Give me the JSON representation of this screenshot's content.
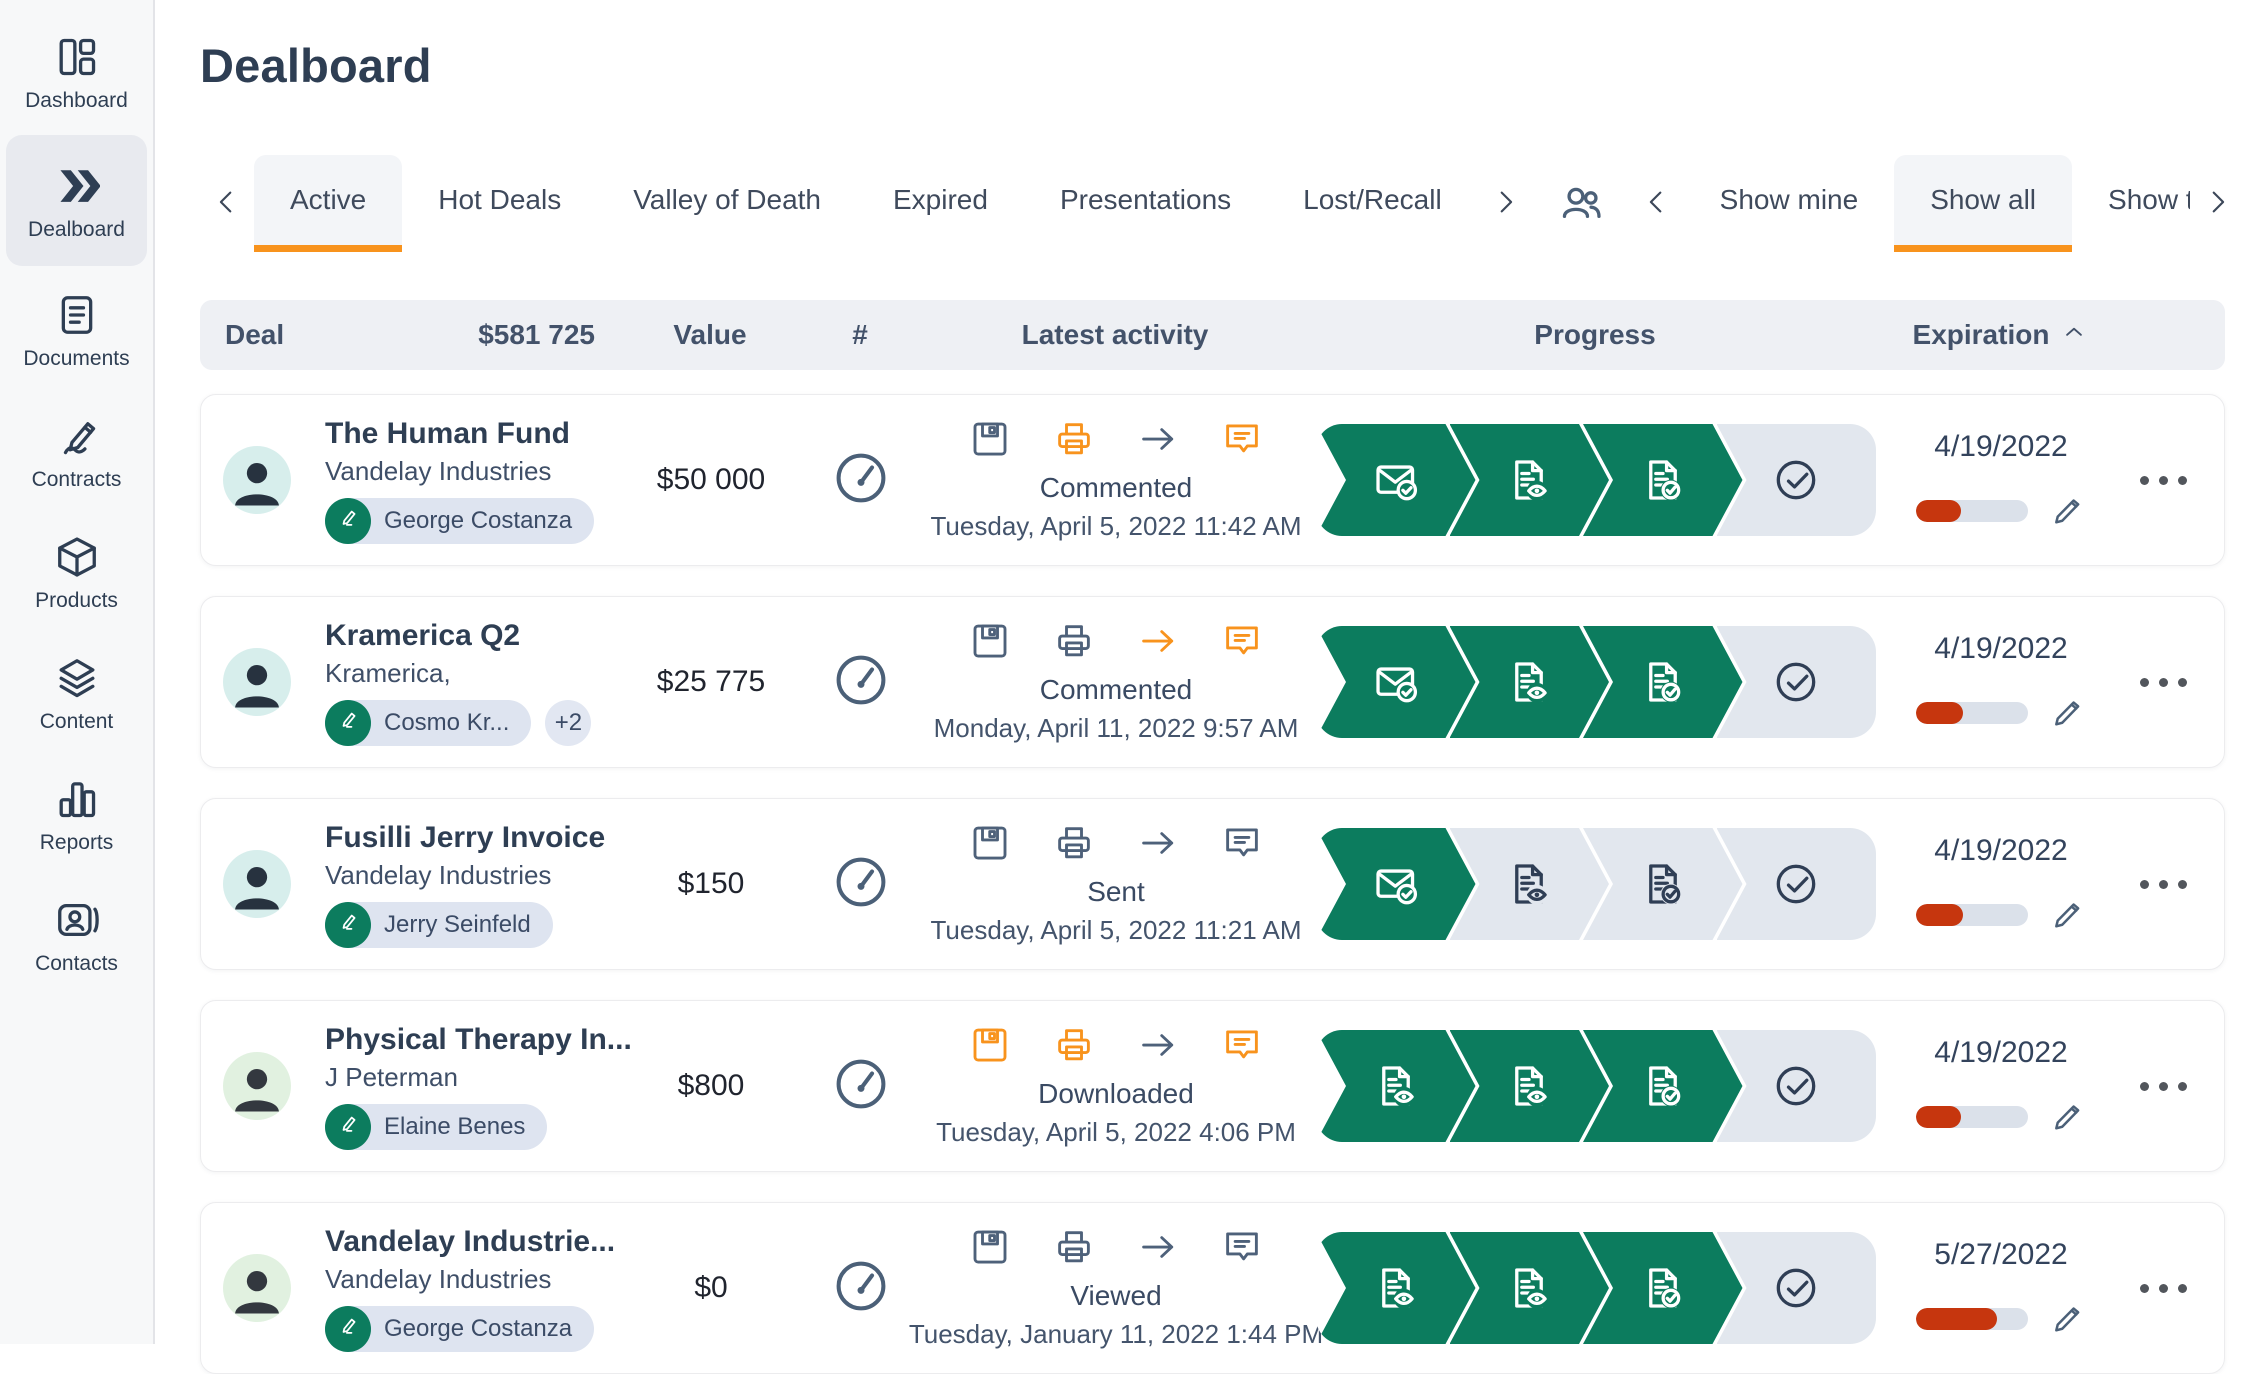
{
  "page": {
    "title": "Dealboard"
  },
  "colors": {
    "accent_orange": "#f8931d",
    "progress_green": "#0c7c5e",
    "health_red": "#c6360e",
    "navy_text": "#2e3e53"
  },
  "sidebar": {
    "items": [
      {
        "id": "sidebar-item-dashboard",
        "label": "Dashboard",
        "icon": "dashboard-icon",
        "state": ""
      },
      {
        "id": "sidebar-item-dealboard",
        "label": "Dealboard",
        "icon": "dealboard-icon",
        "state": "active"
      },
      {
        "id": "sidebar-item-documents",
        "label": "Documents",
        "icon": "documents-icon",
        "state": ""
      },
      {
        "id": "sidebar-item-contracts",
        "label": "Contracts",
        "icon": "contracts-icon",
        "state": ""
      },
      {
        "id": "sidebar-item-products",
        "label": "Products",
        "icon": "products-icon",
        "state": ""
      },
      {
        "id": "sidebar-item-content",
        "label": "Content",
        "icon": "content-icon",
        "state": ""
      },
      {
        "id": "sidebar-item-reports",
        "label": "Reports",
        "icon": "reports-icon",
        "state": ""
      },
      {
        "id": "sidebar-item-contacts",
        "label": "Contacts",
        "icon": "contacts-icon",
        "state": ""
      }
    ]
  },
  "deal_tabs": [
    {
      "id": "tab-active",
      "label": "Active",
      "state": "active"
    },
    {
      "id": "tab-hot-deals",
      "label": "Hot Deals",
      "state": ""
    },
    {
      "id": "tab-valley-of-death",
      "label": "Valley of Death",
      "state": ""
    },
    {
      "id": "tab-expired",
      "label": "Expired",
      "state": ""
    },
    {
      "id": "tab-presentations",
      "label": "Presentations",
      "state": ""
    },
    {
      "id": "tab-lost-recall",
      "label": "Lost/Recall",
      "state": ""
    }
  ],
  "filter_tabs": [
    {
      "id": "tab-show-mine",
      "label": "Show mine",
      "state": ""
    },
    {
      "id": "tab-show-all",
      "label": "Show all",
      "state": "active"
    },
    {
      "id": "tab-show-team",
      "label": "Show team",
      "state": ""
    }
  ],
  "table_header": {
    "deal": "Deal",
    "total": "$581 725",
    "value": "Value",
    "number": "#",
    "latest_activity": "Latest activity",
    "progress": "Progress",
    "expiration": "Expiration"
  },
  "rows": [
    {
      "name": "The Human Fund",
      "company": "Vandelay Industries",
      "avatar": "teal",
      "tag": "George Costanza",
      "extra": "",
      "value": "$50 000",
      "activity_icons": [
        {
          "icon": "save-icon",
          "tone": "slate"
        },
        {
          "icon": "printer-icon",
          "tone": "orange"
        },
        {
          "icon": "forward-icon",
          "tone": "slate"
        },
        {
          "icon": "comment-icon",
          "tone": "orange"
        }
      ],
      "status": "Commented",
      "activity_date": "Tuesday, April 5, 2022 11:42 AM",
      "stages": [
        {
          "icon": "envelope-check-icon",
          "state": "done"
        },
        {
          "icon": "doc-eye-icon",
          "state": "done"
        },
        {
          "icon": "doc-check-icon",
          "state": "done"
        },
        {
          "icon": "circle-check-icon",
          "state": "todo"
        }
      ],
      "expiration": "4/19/2022",
      "health_pct": 40
    },
    {
      "name": "Kramerica Q2",
      "company": "Kramerica,",
      "avatar": "teal",
      "tag": "Cosmo Kr...",
      "extra": "+2",
      "value": "$25 775",
      "activity_icons": [
        {
          "icon": "save-icon",
          "tone": "slate"
        },
        {
          "icon": "printer-icon",
          "tone": "slate"
        },
        {
          "icon": "forward-icon",
          "tone": "orange"
        },
        {
          "icon": "comment-icon",
          "tone": "orange"
        }
      ],
      "status": "Commented",
      "activity_date": "Monday, April 11, 2022 9:57 AM",
      "stages": [
        {
          "icon": "envelope-check-icon",
          "state": "done"
        },
        {
          "icon": "doc-eye-icon",
          "state": "done"
        },
        {
          "icon": "doc-check-icon",
          "state": "done"
        },
        {
          "icon": "circle-check-icon",
          "state": "todo"
        }
      ],
      "expiration": "4/19/2022",
      "health_pct": 42
    },
    {
      "name": "Fusilli Jerry Invoice",
      "company": "Vandelay Industries",
      "avatar": "teal",
      "tag": "Jerry Seinfeld",
      "extra": "",
      "value": "$150",
      "activity_icons": [
        {
          "icon": "save-icon",
          "tone": "slate"
        },
        {
          "icon": "printer-icon",
          "tone": "slate"
        },
        {
          "icon": "forward-icon",
          "tone": "slate"
        },
        {
          "icon": "comment-icon",
          "tone": "slate"
        }
      ],
      "status": "Sent",
      "activity_date": "Tuesday, April 5, 2022 11:21 AM",
      "stages": [
        {
          "icon": "envelope-check-icon",
          "state": "done"
        },
        {
          "icon": "doc-eye-icon",
          "state": "todo"
        },
        {
          "icon": "doc-check-icon",
          "state": "todo"
        },
        {
          "icon": "circle-check-icon",
          "state": "todo"
        }
      ],
      "expiration": "4/19/2022",
      "health_pct": 42
    },
    {
      "name": "Physical Therapy In...",
      "company": "J Peterman",
      "avatar": "green",
      "tag": "Elaine Benes",
      "extra": "",
      "value": "$800",
      "activity_icons": [
        {
          "icon": "save-icon",
          "tone": "orange"
        },
        {
          "icon": "printer-icon",
          "tone": "orange"
        },
        {
          "icon": "forward-icon",
          "tone": "slate"
        },
        {
          "icon": "comment-icon",
          "tone": "orange"
        }
      ],
      "status": "Downloaded",
      "activity_date": "Tuesday, April 5, 2022 4:06 PM",
      "stages": [
        {
          "icon": "doc-eye-icon",
          "state": "done"
        },
        {
          "icon": "doc-eye-icon",
          "state": "done"
        },
        {
          "icon": "doc-check-icon",
          "state": "done"
        },
        {
          "icon": "circle-check-icon",
          "state": "todo"
        }
      ],
      "expiration": "4/19/2022",
      "health_pct": 40
    },
    {
      "name": "Vandelay Industrie...",
      "company": "Vandelay Industries",
      "avatar": "green",
      "tag": "George Costanza",
      "extra": "",
      "value": "$0",
      "activity_icons": [
        {
          "icon": "save-icon",
          "tone": "slate"
        },
        {
          "icon": "printer-icon",
          "tone": "slate"
        },
        {
          "icon": "forward-icon",
          "tone": "slate"
        },
        {
          "icon": "comment-icon",
          "tone": "slate"
        }
      ],
      "status": "Viewed",
      "activity_date": "Tuesday, January 11, 2022 1:44 PM",
      "stages": [
        {
          "icon": "doc-eye-icon",
          "state": "done"
        },
        {
          "icon": "doc-eye-icon",
          "state": "done"
        },
        {
          "icon": "doc-check-icon",
          "state": "done"
        },
        {
          "icon": "circle-check-icon",
          "state": "todo"
        }
      ],
      "expiration": "5/27/2022",
      "health_pct": 72
    }
  ]
}
